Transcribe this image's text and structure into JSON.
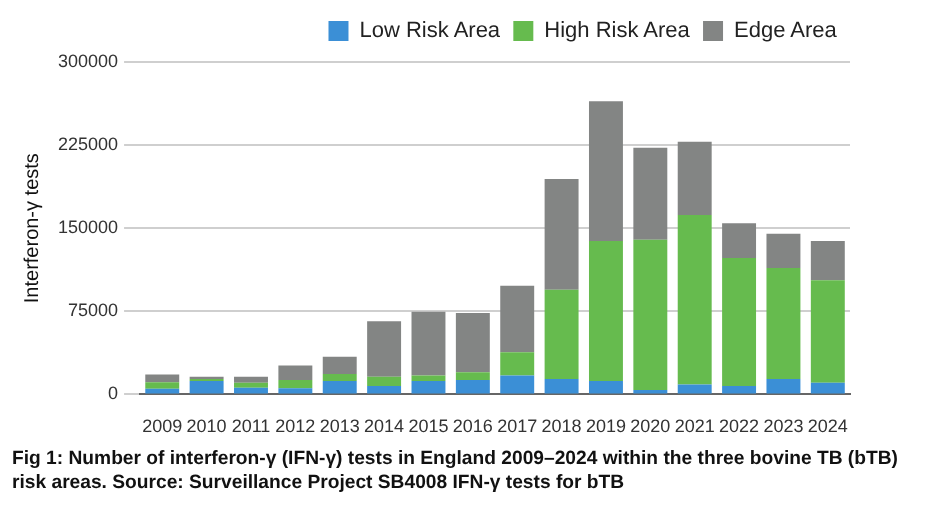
{
  "chart_data": {
    "type": "bar",
    "stacked": true,
    "ylabel": "Interferon-γ tests",
    "categories": [
      "2009",
      "2010",
      "2011",
      "2012",
      "2013",
      "2014",
      "2015",
      "2016",
      "2017",
      "2018",
      "2019",
      "2020",
      "2021",
      "2022",
      "2023",
      "2024"
    ],
    "series": [
      {
        "name": "Low Risk Area",
        "color": "#3b8fd6",
        "values": [
          5000,
          12000,
          6000,
          5500,
          12000,
          7500,
          12000,
          13000,
          17000,
          14000,
          12000,
          4000,
          9000,
          7500,
          14000,
          10500
        ]
      },
      {
        "name": "High Risk Area",
        "color": "#66bb4e",
        "values": [
          6000,
          2000,
          4500,
          7500,
          6500,
          8500,
          5000,
          7000,
          21000,
          80500,
          126500,
          135500,
          153000,
          115500,
          100000,
          92500
        ]
      },
      {
        "name": "Edge Area",
        "color": "#838584",
        "values": [
          7000,
          2000,
          5500,
          13000,
          15500,
          50000,
          57500,
          53500,
          60000,
          100000,
          126000,
          83000,
          66000,
          31500,
          31000,
          35500
        ]
      }
    ],
    "ylim": [
      0,
      300000
    ],
    "yticks": [
      0,
      75000,
      150000,
      225000,
      300000
    ],
    "grid": "y",
    "legend": "top",
    "annotations": [
      "Fig 1: Number of interferon-γ (IFN-γ) tests in England 2009–2024 within the three bovine TB (bTB) risk areas. Source: Surveillance Project SB4008 IFN-γ tests for bTB"
    ]
  }
}
